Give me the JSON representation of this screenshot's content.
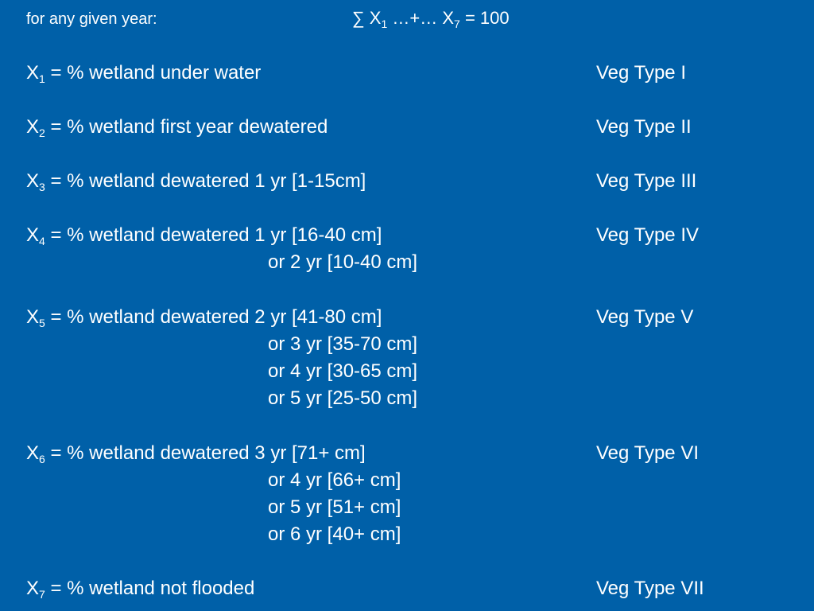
{
  "header": {
    "label": "for any given year:",
    "formula_sum": "∑ X",
    "formula_sub1": "1",
    "formula_mid": " …+… X",
    "formula_sub7": "7",
    "formula_end": " = 100"
  },
  "rows": [
    {
      "var": "X",
      "sub": "1",
      "desc": " = % wetland under water",
      "veg": "Veg Type I",
      "cont": []
    },
    {
      "var": "X",
      "sub": "2",
      "desc": " = % wetland first year dewatered",
      "veg": "Veg Type II",
      "cont": []
    },
    {
      "var": "X",
      "sub": "3",
      "desc": " = % wetland dewatered 1 yr [1-15cm]",
      "veg": "Veg Type III",
      "cont": []
    },
    {
      "var": "X",
      "sub": "4",
      "desc": " = % wetland dewatered 1 yr [16-40 cm]",
      "veg": "Veg Type IV",
      "cont": [
        "or  2 yr [10-40 cm]"
      ]
    },
    {
      "var": "X",
      "sub": "5",
      "desc": " = % wetland dewatered 2 yr [41-80 cm]",
      "veg": "Veg Type V",
      "cont": [
        "or  3 yr [35-70 cm]",
        "or  4 yr [30-65 cm]",
        "or  5 yr [25-50 cm]"
      ]
    },
    {
      "var": "X",
      "sub": "6",
      "desc": " = % wetland dewatered 3 yr [71+ cm]",
      "veg": "Veg Type VI",
      "cont": [
        "or  4 yr [66+ cm]",
        "or  5 yr [51+ cm]",
        "or  6 yr [40+ cm]"
      ]
    },
    {
      "var": "X",
      "sub": "7",
      "desc": " = % wetland not flooded",
      "veg": "Veg Type VII",
      "cont": []
    }
  ],
  "colors": {
    "background": "#0060a8",
    "text": "#ffffff"
  }
}
